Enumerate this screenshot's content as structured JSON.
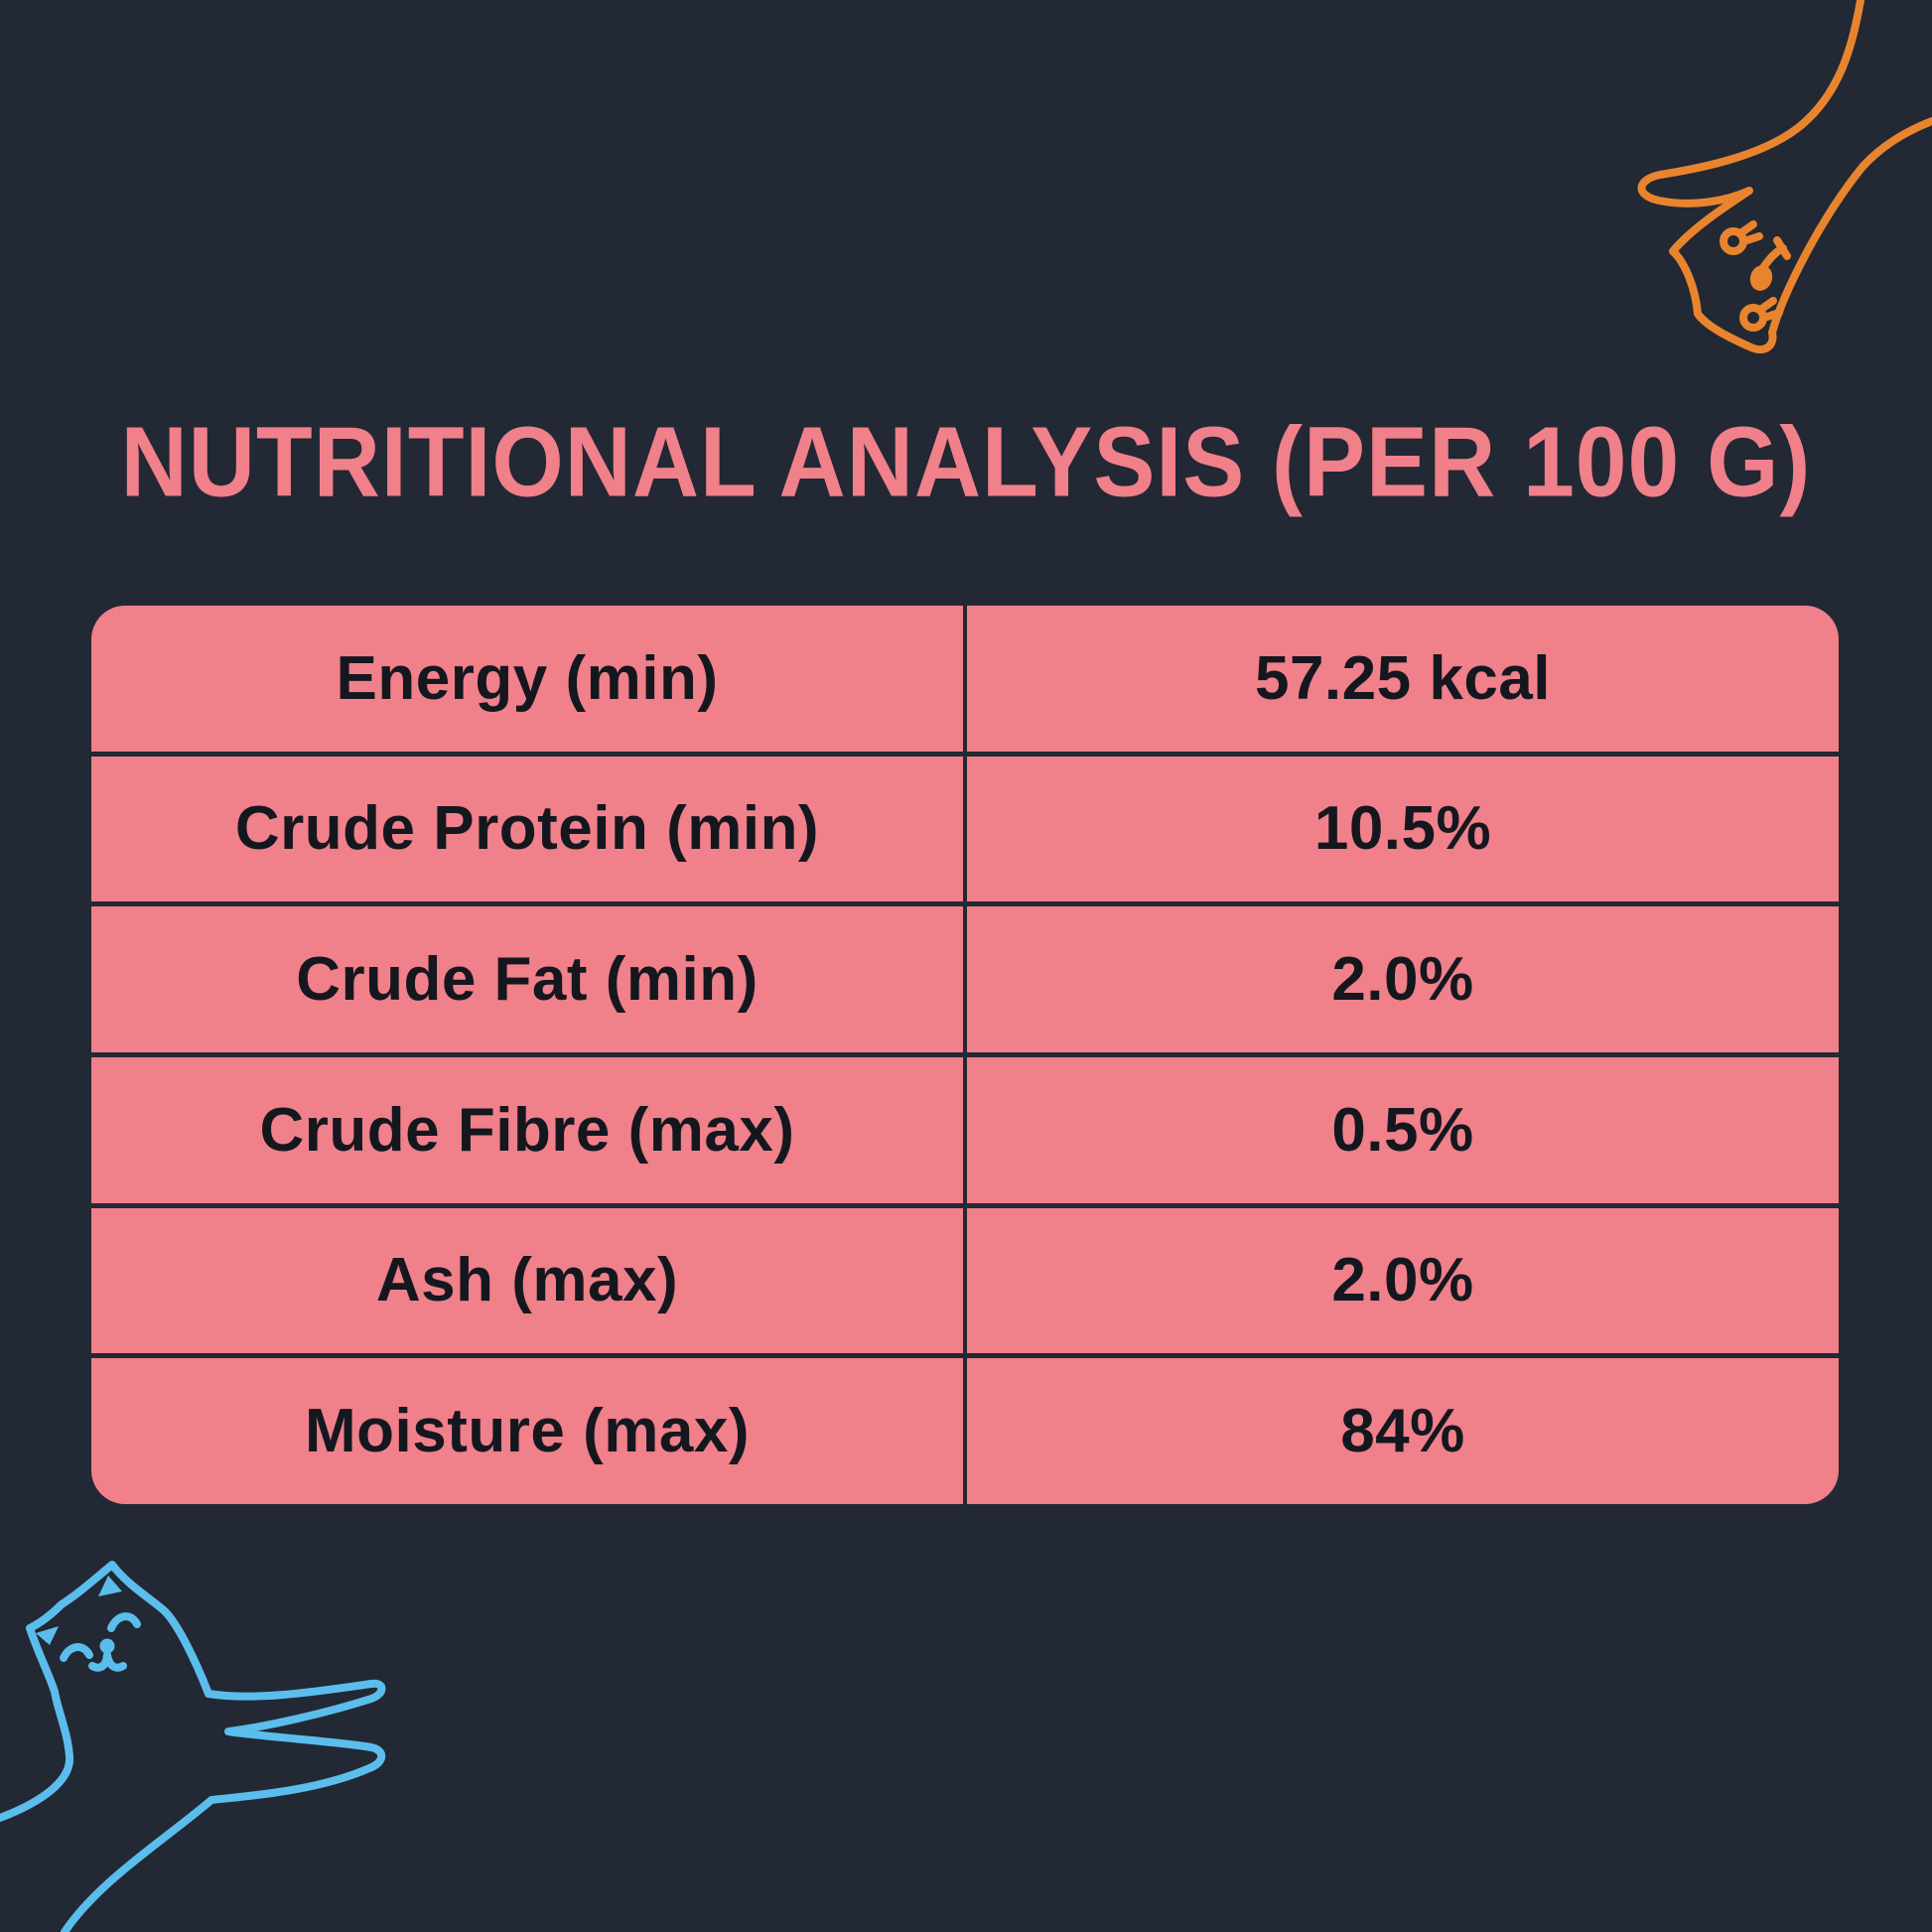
{
  "colors": {
    "background": "#222834",
    "pink": "#F0808A",
    "ink": "#15171F",
    "orange_cat": "#E9842E",
    "blue_cat": "#5BBDEC"
  },
  "title": {
    "text": "NUTRITIONAL ANALYSIS (PER 100 G)"
  },
  "table": {
    "rows": [
      {
        "label": "Energy (min)",
        "value": "57.25 kcal"
      },
      {
        "label": "Crude Protein (min)",
        "value": "10.5%"
      },
      {
        "label": "Crude Fat (min)",
        "value": "2.0%"
      },
      {
        "label": "Crude Fibre (max)",
        "value": "0.5%"
      },
      {
        "label": "Ash (max)",
        "value": "2.0%"
      },
      {
        "label": "Moisture (max)",
        "value": "84%"
      }
    ]
  },
  "decorations": {
    "top_right_icon": "orange-peeking-cat-line-art",
    "bottom_left_icon": "blue-stretching-cat-line-art"
  }
}
